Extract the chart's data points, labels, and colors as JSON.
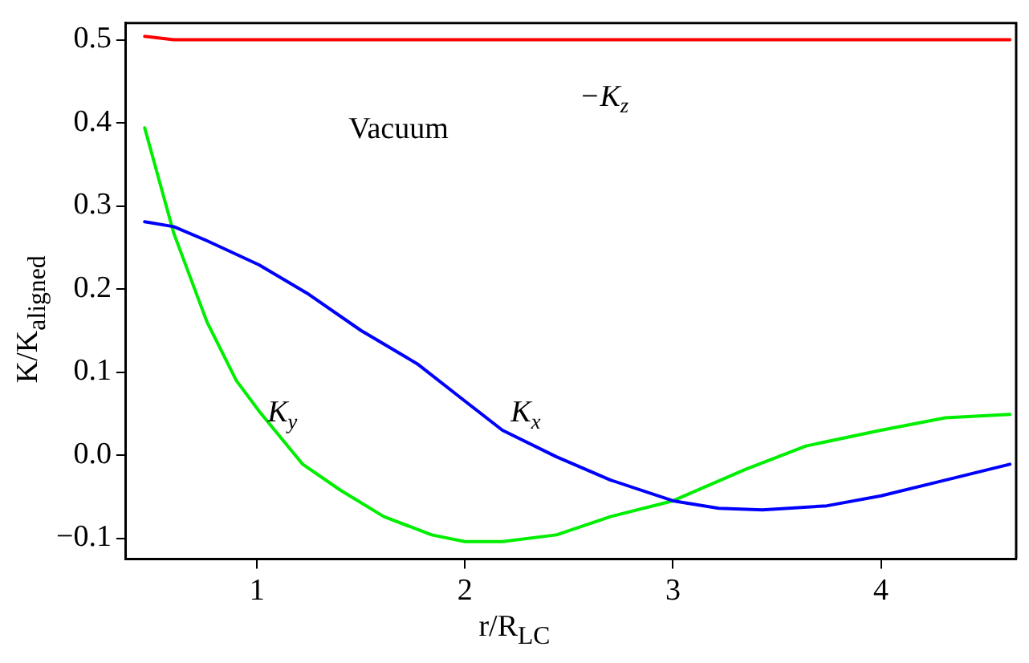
{
  "chart_data": {
    "type": "line",
    "xlabel": "r/R$_{LC}$",
    "ylabel": "K/K$_{aligned}$",
    "annotations": [
      "Vacuum"
    ],
    "xlim": [
      0.37,
      4.65
    ],
    "ylim": [
      -0.125,
      0.52
    ],
    "xticks": [
      1,
      2,
      3,
      4
    ],
    "yticks": [
      {
        "value": -0.1,
        "label": "−0.1"
      },
      {
        "value": 0,
        "label": "0.0"
      },
      0.1,
      0.2,
      0.3,
      0.4,
      0.5
    ],
    "grid": false,
    "legend": false,
    "line_style": "solid",
    "series": [
      {
        "name": "K$_{x}$",
        "color": "#0000ff",
        "x": [
          0.46,
          0.6,
          0.76,
          1.01,
          1.24,
          1.5,
          1.77,
          2.0,
          2.18,
          2.44,
          2.7,
          3.0,
          3.22,
          3.43,
          3.74,
          4.0,
          4.31,
          4.62
        ],
        "values": [
          0.281,
          0.275,
          0.258,
          0.229,
          0.195,
          0.15,
          0.11,
          0.065,
          0.03,
          -0.002,
          -0.03,
          -0.055,
          -0.064,
          -0.066,
          -0.061,
          -0.049,
          -0.03,
          -0.011
        ]
      },
      {
        "name": "K$_{y}$",
        "color": "#00ee00",
        "x": [
          0.46,
          0.6,
          0.76,
          0.9,
          1.01,
          1.22,
          1.4,
          1.61,
          1.84,
          2.0,
          2.18,
          2.44,
          2.7,
          3.0,
          3.35,
          3.64,
          4.0,
          4.31,
          4.62
        ],
        "values": [
          0.394,
          0.267,
          0.16,
          0.09,
          0.053,
          -0.011,
          -0.042,
          -0.074,
          -0.096,
          -0.104,
          -0.104,
          -0.096,
          -0.074,
          -0.055,
          -0.017,
          0.011,
          0.03,
          0.045,
          0.049
        ]
      },
      {
        "name": "−K$_{z}$",
        "color": "#ff0000",
        "x": [
          0.46,
          0.6,
          1.0,
          2.0,
          3.0,
          4.0,
          4.62
        ],
        "values": [
          0.504,
          0.5,
          0.5,
          0.5,
          0.5,
          0.5,
          0.5
        ]
      }
    ]
  }
}
